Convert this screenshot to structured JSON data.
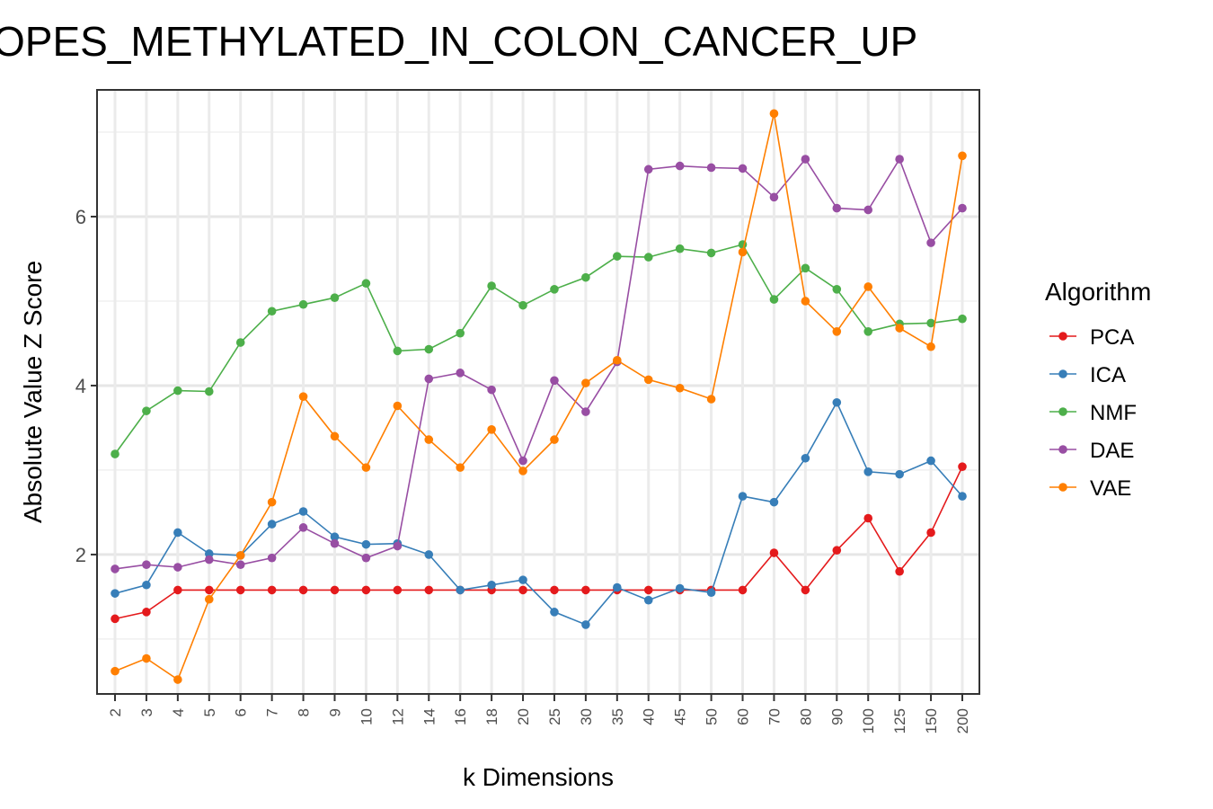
{
  "chart_data": {
    "type": "line",
    "title": "OPES_METHYLATED_IN_COLON_CANCER_UP",
    "xlabel": "k Dimensions",
    "ylabel": "Absolute Value Z Score",
    "x_type": "categorical",
    "categories": [
      "2",
      "3",
      "4",
      "5",
      "6",
      "7",
      "8",
      "9",
      "10",
      "12",
      "14",
      "16",
      "18",
      "20",
      "25",
      "30",
      "35",
      "40",
      "45",
      "50",
      "60",
      "70",
      "80",
      "90",
      "100",
      "125",
      "150",
      "200"
    ],
    "ylim": [
      0.35,
      7.5
    ],
    "y_ticks": [
      2,
      4,
      6
    ],
    "grid": true,
    "legend": {
      "title": "Algorithm",
      "position": "right"
    },
    "series": [
      {
        "name": "PCA",
        "color": "#e41a1c",
        "values": [
          1.24,
          1.32,
          1.58,
          1.58,
          1.58,
          1.58,
          1.58,
          1.58,
          1.58,
          1.58,
          1.58,
          1.58,
          1.58,
          1.58,
          1.58,
          1.58,
          1.58,
          1.58,
          1.58,
          1.58,
          1.58,
          2.02,
          1.58,
          2.05,
          2.43,
          1.8,
          2.26,
          3.04
        ]
      },
      {
        "name": "ICA",
        "color": "#377eb8",
        "values": [
          1.54,
          1.64,
          2.26,
          2.01,
          1.99,
          2.36,
          2.51,
          2.21,
          2.12,
          2.13,
          2.0,
          1.58,
          1.64,
          1.7,
          1.32,
          1.17,
          1.61,
          1.46,
          1.6,
          1.55,
          2.69,
          2.62,
          3.14,
          3.8,
          2.98,
          2.95,
          3.11,
          2.69
        ]
      },
      {
        "name": "NMF",
        "color": "#4daf4a",
        "values": [
          3.19,
          3.7,
          3.94,
          3.93,
          4.51,
          4.88,
          4.96,
          5.04,
          5.21,
          4.41,
          4.43,
          4.62,
          5.18,
          4.95,
          5.14,
          5.28,
          5.53,
          5.52,
          5.62,
          5.57,
          5.67,
          5.02,
          5.39,
          5.14,
          4.64,
          4.73,
          4.74,
          4.79
        ]
      },
      {
        "name": "DAE",
        "color": "#984ea3",
        "values": [
          1.83,
          1.88,
          1.85,
          1.94,
          1.88,
          1.96,
          2.32,
          2.13,
          1.96,
          2.1,
          4.08,
          4.15,
          3.95,
          3.11,
          4.06,
          3.69,
          4.28,
          6.56,
          6.6,
          6.58,
          6.57,
          6.23,
          6.68,
          6.1,
          6.08,
          6.68,
          5.69,
          6.1
        ]
      },
      {
        "name": "VAE",
        "color": "#ff7f00",
        "values": [
          0.62,
          0.77,
          0.52,
          1.47,
          1.99,
          2.62,
          3.87,
          3.4,
          3.03,
          3.76,
          3.36,
          3.03,
          3.48,
          2.99,
          3.36,
          4.03,
          4.3,
          4.07,
          3.97,
          3.84,
          5.58,
          7.22,
          5.0,
          4.64,
          5.17,
          4.68,
          4.46,
          6.72
        ]
      }
    ]
  }
}
